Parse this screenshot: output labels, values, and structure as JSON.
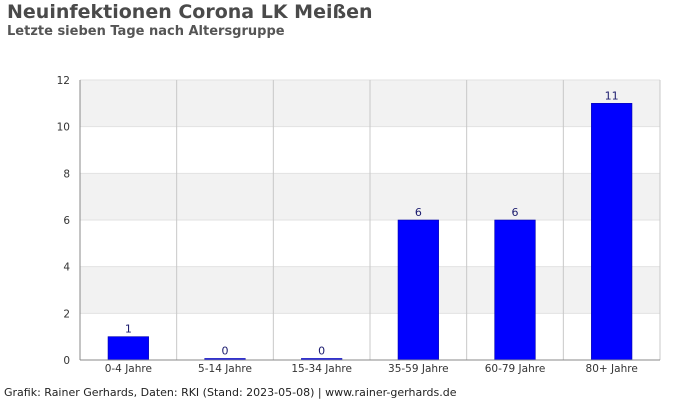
{
  "chart_data": {
    "type": "bar",
    "title": "Neuinfektionen Corona LK Meißen",
    "subtitle": "Letzte sieben Tage nach Altersgruppe",
    "categories": [
      "0-4 Jahre",
      "5-14 Jahre",
      "15-34 Jahre",
      "35-59 Jahre",
      "60-79 Jahre",
      "80+ Jahre"
    ],
    "values": [
      1,
      0,
      0,
      6,
      6,
      11
    ],
    "data_labels": [
      "1",
      "0",
      "0",
      "6",
      "6",
      "11"
    ],
    "ylim": [
      0,
      12
    ],
    "yticks": [
      0,
      2,
      4,
      6,
      8,
      10,
      12
    ],
    "ytick_labels": [
      "0",
      "2",
      "4",
      "6",
      "8",
      "10",
      "12"
    ],
    "grid": true,
    "legend": "none",
    "bar_color": "#0000ff",
    "band_color": "#f2f2f2",
    "footer": "Grafik: Rainer Gerhards, Daten: RKI (Stand: 2023-05-08) | www.rainer-gerhards.de"
  }
}
